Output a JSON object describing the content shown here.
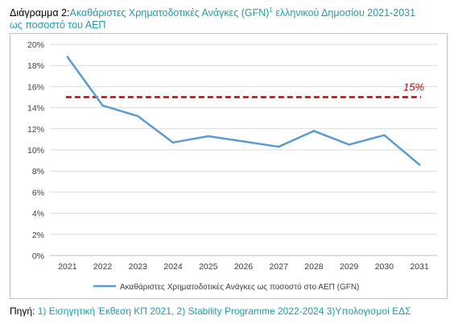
{
  "caption": {
    "prefix": "Διάγραμμα 2:",
    "title_part1": "Ακαθάριστες Χρηματοδοτικές Ανάγκες (GFN)",
    "superscript": "1",
    "title_part2": " ελληνικού Δημοσίου 2021-2031",
    "title_line2": "ως ποσοστό του ΑΕΠ"
  },
  "source": {
    "label": "Πηγή:",
    "text": " 1) Εισηγητική Έκθεση ΚΠ 2021, 2) Stability Programme 2022-2024  3)Υπολογισμοί ΕΔΣ"
  },
  "chart_data": {
    "type": "line",
    "x": [
      "2021",
      "2022",
      "2023",
      "2024",
      "2025",
      "2026",
      "2027",
      "2028",
      "2029",
      "2030",
      "2031"
    ],
    "series": [
      {
        "name": "Ακαθάριστες  Χρηματοδοτικές Ανάγκες  ως ποσοστό στο ΑΕΠ (GFN)",
        "values": [
          18.8,
          14.2,
          13.2,
          10.7,
          11.3,
          10.8,
          10.3,
          11.8,
          10.5,
          11.4,
          8.6
        ],
        "color": "#5b9bd5"
      }
    ],
    "threshold": {
      "value": 15,
      "label": "15%",
      "color": "#c00000"
    },
    "ylim": [
      0,
      20
    ],
    "yticks": [
      "0%",
      "2%",
      "4%",
      "6%",
      "8%",
      "10%",
      "12%",
      "14%",
      "16%",
      "18%",
      "20%"
    ],
    "grid": true,
    "legend_position": "bottom",
    "xlabel": "",
    "ylabel": ""
  }
}
